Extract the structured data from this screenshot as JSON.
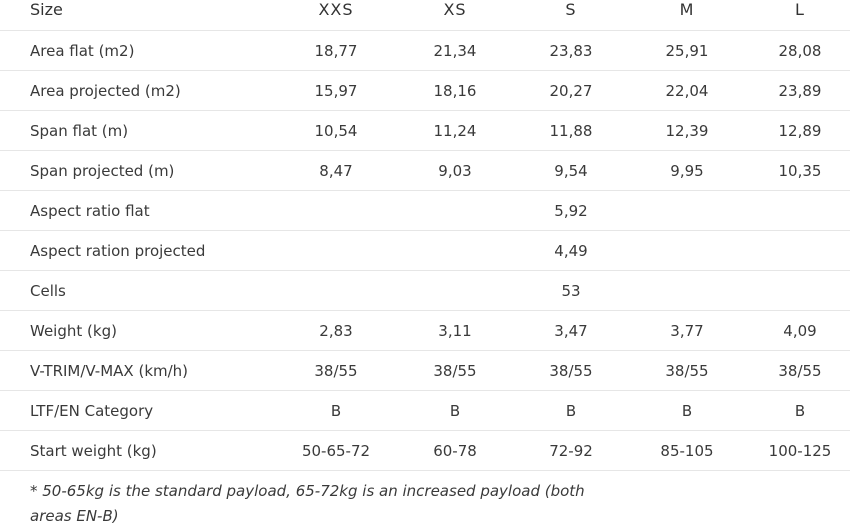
{
  "headers": [
    "Size",
    "XXS",
    "XS",
    "S",
    "M",
    "L"
  ],
  "rows": [
    {
      "label": "Area flat (m2)",
      "values": [
        "18,77",
        "21,34",
        "23,83",
        "25,91",
        "28,08"
      ]
    },
    {
      "label": "Area projected (m2)",
      "values": [
        "15,97",
        "18,16",
        "20,27",
        "22,04",
        "23,89"
      ]
    },
    {
      "label": "Span flat (m)",
      "values": [
        "10,54",
        "11,24",
        "11,88",
        "12,39",
        "12,89"
      ]
    },
    {
      "label": "Span projected (m)",
      "values": [
        "8,47",
        "9,03",
        "9,54",
        "9,95",
        "10,35"
      ]
    },
    {
      "label": "Aspect ratio flat",
      "shared": "5,92"
    },
    {
      "label": "Aspect ration projected",
      "shared": "4,49"
    },
    {
      "label": "Cells",
      "shared": "53"
    },
    {
      "label": "Weight (kg)",
      "values": [
        "2,83",
        "3,11",
        "3,47",
        "3,77",
        "4,09"
      ]
    },
    {
      "label": "V-TRIM/V-MAX (km/h)",
      "values": [
        "38/55",
        "38/55",
        "38/55",
        "38/55",
        "38/55"
      ]
    },
    {
      "label": "LTF/EN Category",
      "values": [
        "B",
        "B",
        "B",
        "B",
        "B"
      ]
    },
    {
      "label": "Start weight (kg)",
      "values": [
        "50-65-72",
        "60-78",
        "72-92",
        "85-105",
        "100-125"
      ]
    }
  ],
  "footnote": "* 50-65kg is the standard payload, 65-72kg is an increased payload (both areas EN-B)"
}
